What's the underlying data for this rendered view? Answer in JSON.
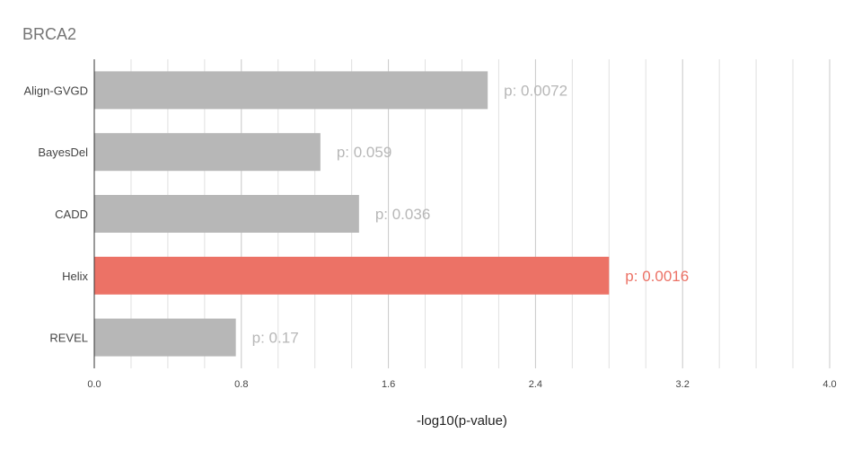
{
  "chart_data": {
    "type": "bar",
    "orientation": "horizontal",
    "title": "BRCA2",
    "xlabel": "-log10(p-value)",
    "ylabel": "",
    "xlim": [
      0,
      4.0
    ],
    "xticks": [
      "0.0",
      "0.8",
      "1.6",
      "2.4",
      "3.2",
      "4.0"
    ],
    "minor_gridlines": true,
    "categories": [
      "Align-GVGD",
      "BayesDel",
      "CADD",
      "Helix",
      "REVEL"
    ],
    "values": [
      2.14,
      1.23,
      1.44,
      2.8,
      0.77
    ],
    "data_labels": [
      "p: 0.0072",
      "p: 0.059",
      "p: 0.036",
      "p: 0.0016",
      "p: 0.17"
    ],
    "colors": {
      "default_bar": "#b7b7b7",
      "highlight_bar": "#ec7266",
      "default_label": "#b7b7b7",
      "highlight_label": "#ec7266",
      "gridline": "#e0e0e0",
      "major_gridline": "#c8c8c8",
      "axis": "#333333"
    },
    "highlight_category": "Helix"
  }
}
